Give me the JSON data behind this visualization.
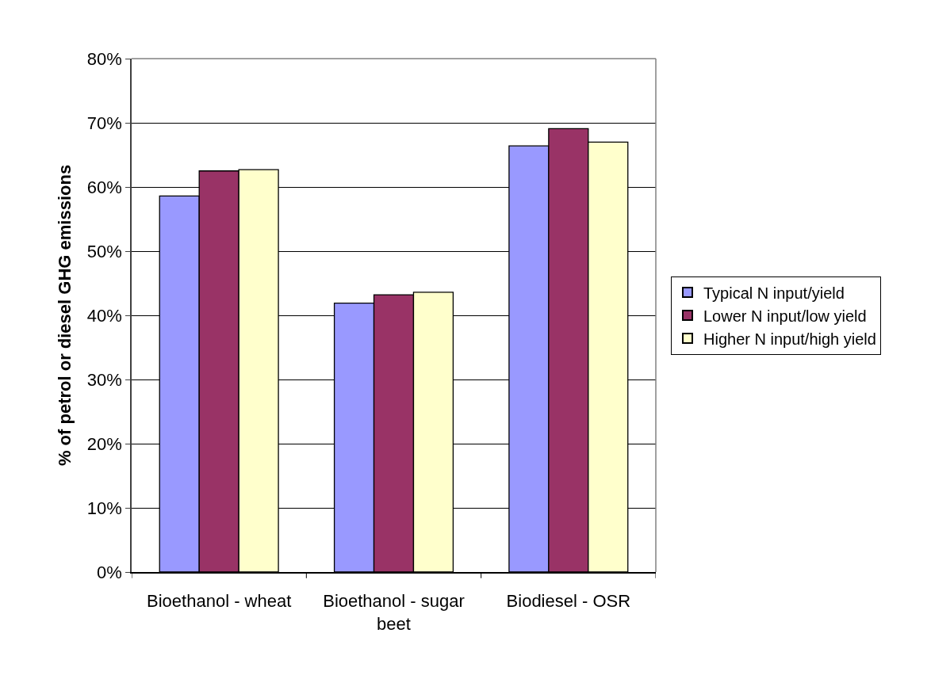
{
  "chart_data": {
    "type": "bar",
    "ylabel": "% of petrol or diesel GHG emissions",
    "categories": [
      "Bioethanol - wheat",
      "Bioethanol - sugar beet",
      "Biodiesel - OSR"
    ],
    "series": [
      {
        "name": "Typical N input/yield",
        "color": "#9999ff",
        "values": [
          58.6,
          41.9,
          66.4
        ]
      },
      {
        "name": "Lower N input/low yield",
        "color": "#993366",
        "values": [
          62.5,
          43.2,
          69.1
        ]
      },
      {
        "name": "Higher N input/high yield",
        "color": "#ffffcc",
        "values": [
          62.7,
          43.6,
          67.0
        ]
      }
    ],
    "ylim": [
      0,
      80
    ],
    "yticks": [
      {
        "value": 0,
        "label": "0%"
      },
      {
        "value": 10,
        "label": "10%"
      },
      {
        "value": 20,
        "label": "20%"
      },
      {
        "value": 30,
        "label": "30%"
      },
      {
        "value": 40,
        "label": "40%"
      },
      {
        "value": 50,
        "label": "50%"
      },
      {
        "value": 60,
        "label": "60%"
      },
      {
        "value": 70,
        "label": "70%"
      },
      {
        "value": 80,
        "label": "80%"
      }
    ],
    "grid": "y",
    "legend": "right"
  }
}
